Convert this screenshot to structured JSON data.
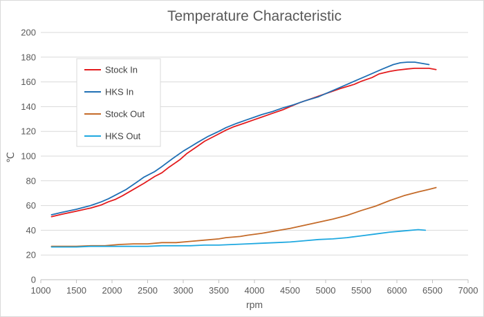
{
  "chart_data": {
    "type": "line",
    "title": "Temperature Characteristic",
    "xlabel": "rpm",
    "ylabel": "℃",
    "xlim": [
      1000,
      7000
    ],
    "ylim": [
      0,
      200
    ],
    "xticks": [
      1000,
      1500,
      2000,
      2500,
      3000,
      3500,
      4000,
      4500,
      5000,
      5500,
      6000,
      6500,
      7000
    ],
    "yticks": [
      0,
      20,
      40,
      60,
      80,
      100,
      120,
      140,
      160,
      180,
      200
    ],
    "grid": "horizontal",
    "legend_position": "top-left",
    "series": [
      {
        "name": "Stock In",
        "color": "#e31a1c",
        "x": [
          1150,
          1300,
          1500,
          1700,
          1850,
          1950,
          2050,
          2150,
          2300,
          2450,
          2600,
          2700,
          2800,
          2950,
          3050,
          3200,
          3300,
          3450,
          3600,
          3700,
          3850,
          4000,
          4100,
          4250,
          4400,
          4500,
          4650,
          4800,
          5000,
          5200,
          5400,
          5500,
          5650,
          5750,
          5900,
          6000,
          6150,
          6250,
          6350,
          6450,
          6550
        ],
        "y": [
          51,
          53,
          55.5,
          58,
          60.5,
          63,
          65,
          68,
          73,
          78,
          83.5,
          86.5,
          91,
          97,
          102,
          108,
          112,
          116.5,
          121,
          123.5,
          126.5,
          129.5,
          131.5,
          134.5,
          137.5,
          140,
          143.5,
          146.5,
          150.5,
          154.5,
          158,
          160.5,
          163.5,
          166.5,
          168.5,
          169.5,
          170.5,
          171,
          171,
          171,
          170
        ]
      },
      {
        "name": "HKS In",
        "color": "#1f6fb4",
        "x": [
          1150,
          1300,
          1500,
          1700,
          1850,
          1950,
          2050,
          2200,
          2350,
          2450,
          2600,
          2700,
          2850,
          3000,
          3100,
          3200,
          3350,
          3500,
          3600,
          3750,
          3900,
          4000,
          4100,
          4250,
          4400,
          4550,
          4700,
          4900,
          5000,
          5200,
          5400,
          5600,
          5800,
          5950,
          6050,
          6150,
          6250,
          6350,
          6450
        ],
        "y": [
          52.5,
          54.5,
          57,
          60,
          63,
          65.5,
          68.5,
          73,
          79,
          83,
          87.5,
          91.5,
          98,
          104,
          107.5,
          111,
          116,
          120,
          123,
          126.5,
          129.5,
          131.5,
          133.5,
          136,
          139,
          141.5,
          144.5,
          148,
          150.5,
          155.5,
          160.5,
          165.5,
          170.5,
          174,
          175.5,
          176,
          176,
          175,
          174
        ]
      },
      {
        "name": "Stock Out",
        "color": "#c46a28",
        "x": [
          1150,
          1300,
          1500,
          1700,
          1900,
          2100,
          2300,
          2500,
          2700,
          2900,
          3100,
          3300,
          3500,
          3600,
          3800,
          3900,
          4100,
          4300,
          4500,
          4700,
          4900,
          5100,
          5300,
          5500,
          5700,
          5900,
          6100,
          6300,
          6450,
          6550
        ],
        "y": [
          27,
          27,
          27,
          27.5,
          27.5,
          28.5,
          29,
          29,
          30,
          30,
          31,
          32,
          33,
          34,
          35,
          36,
          37.5,
          39.5,
          41.5,
          44,
          46.5,
          49,
          52,
          56,
          59.5,
          64,
          68,
          71,
          73,
          74.5
        ]
      },
      {
        "name": "HKS Out",
        "color": "#1ea8e0",
        "x": [
          1150,
          1300,
          1500,
          1700,
          1900,
          2100,
          2300,
          2500,
          2700,
          2900,
          3100,
          3300,
          3500,
          3700,
          3900,
          4100,
          4300,
          4500,
          4700,
          4900,
          5100,
          5300,
          5500,
          5700,
          5900,
          6100,
          6300,
          6400
        ],
        "y": [
          26.5,
          26.5,
          26.5,
          27,
          27,
          27,
          27,
          27,
          27.5,
          27.5,
          27.5,
          28,
          28,
          28.5,
          29,
          29.5,
          30,
          30.5,
          31.5,
          32.5,
          33,
          34,
          35.5,
          37,
          38.5,
          39.5,
          40.5,
          40
        ]
      }
    ]
  }
}
